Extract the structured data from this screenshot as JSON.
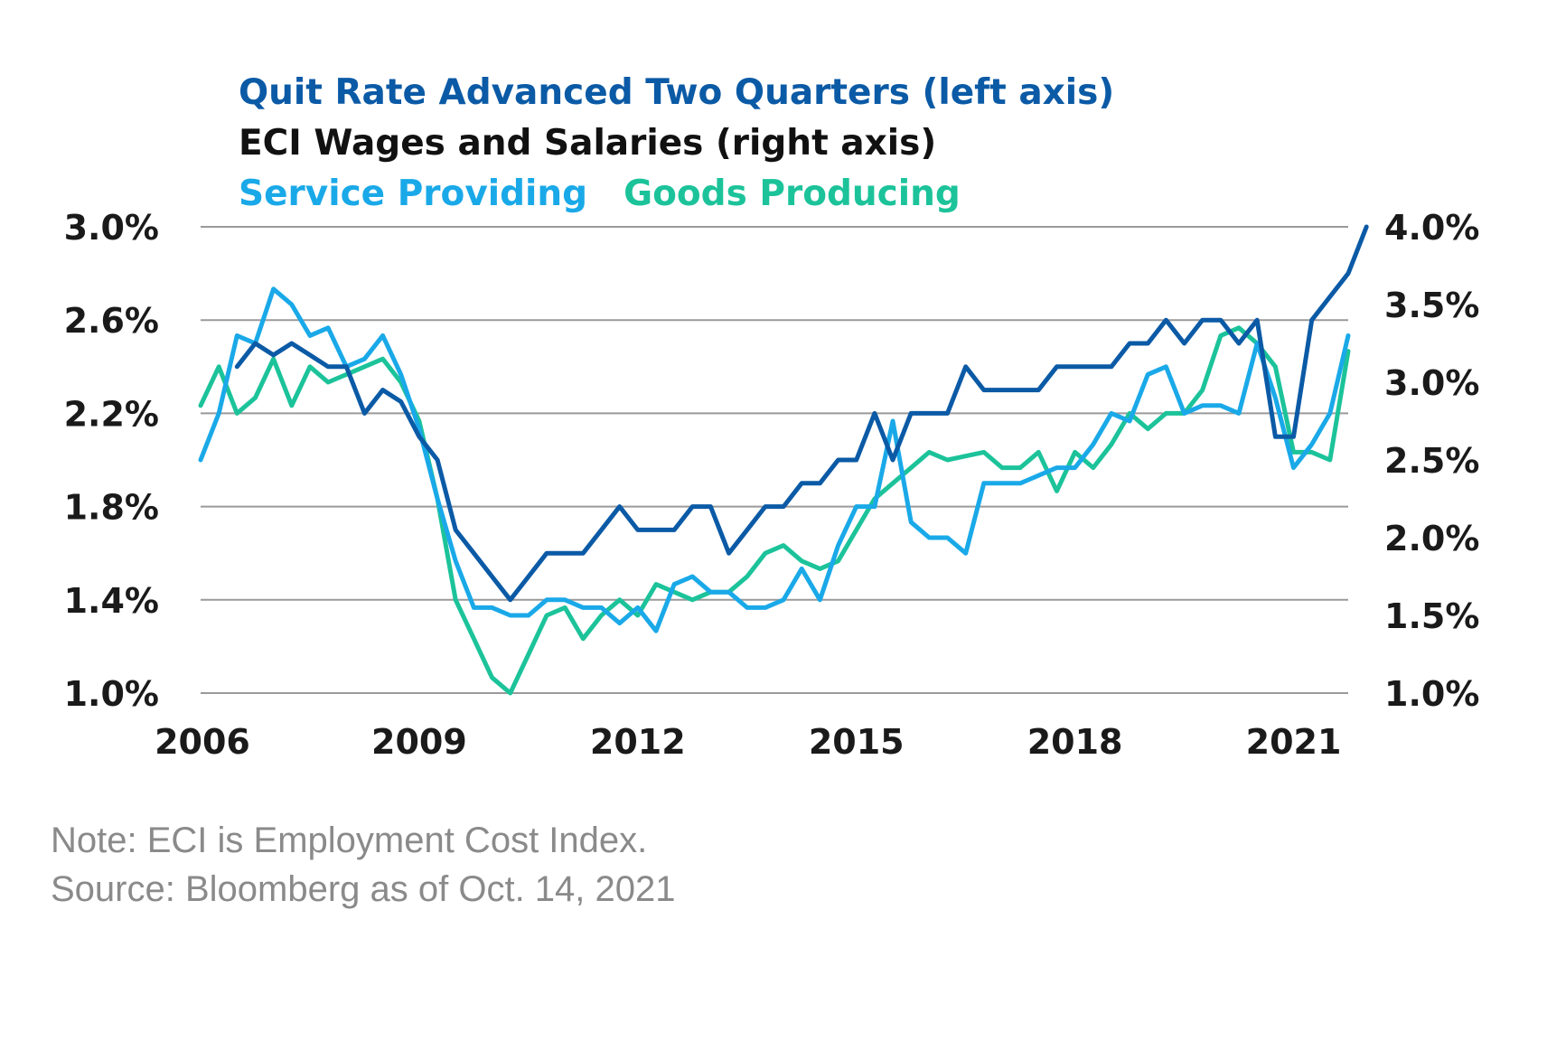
{
  "legend": {
    "quit_rate": "Quit Rate Advanced Two Quarters (left axis)",
    "eci": "ECI Wages and Salaries (right axis)",
    "service": "Service Providing",
    "goods": "Goods Producing"
  },
  "notes": {
    "note": "Note: ECI is Employment Cost Index.",
    "source": "Source: Bloomberg as of Oct. 14, 2021"
  },
  "colors": {
    "quit_rate": "#0b5aa6",
    "eci_title": "#111111",
    "service": "#1aa9e8",
    "goods": "#1cc39a",
    "grid": "#9a9a9a"
  },
  "chart_data": {
    "type": "line",
    "x_ticks": [
      "2006",
      "2009",
      "2012",
      "2015",
      "2018",
      "2021"
    ],
    "x_tick_values": [
      2006,
      2009,
      2012,
      2015,
      2018,
      2021
    ],
    "xlim": [
      2006,
      2021.75
    ],
    "left_axis": {
      "ticks": [
        "3.0%",
        "2.6%",
        "2.2%",
        "1.8%",
        "1.4%",
        "1.0%"
      ],
      "values": [
        3.0,
        2.6,
        2.2,
        1.8,
        1.4,
        1.0
      ],
      "ylim": [
        1.0,
        3.0
      ]
    },
    "right_axis": {
      "ticks": [
        "4.0%",
        "3.5%",
        "3.0%",
        "2.5%",
        "2.0%",
        "1.5%",
        "1.0%"
      ],
      "values": [
        4.0,
        3.5,
        3.0,
        2.5,
        2.0,
        1.5,
        1.0
      ],
      "ylim": [
        1.0,
        4.0
      ]
    },
    "grid": true,
    "series": [
      {
        "name": "Quit Rate Advanced Two Quarters (left axis)",
        "axis": "left",
        "color": "#0b5aa6",
        "points": [
          [
            2006.5,
            2.4
          ],
          [
            2006.75,
            2.5
          ],
          [
            2007.0,
            2.45
          ],
          [
            2007.25,
            2.5
          ],
          [
            2007.5,
            2.45
          ],
          [
            2007.75,
            2.4
          ],
          [
            2008.0,
            2.4
          ],
          [
            2008.25,
            2.2
          ],
          [
            2008.5,
            2.3
          ],
          [
            2008.75,
            2.25
          ],
          [
            2009.0,
            2.1
          ],
          [
            2009.25,
            2.0
          ],
          [
            2009.5,
            1.7
          ],
          [
            2009.75,
            1.6
          ],
          [
            2010.0,
            1.5
          ],
          [
            2010.25,
            1.4
          ],
          [
            2010.5,
            1.5
          ],
          [
            2010.75,
            1.6
          ],
          [
            2011.0,
            1.6
          ],
          [
            2011.25,
            1.6
          ],
          [
            2011.5,
            1.7
          ],
          [
            2011.75,
            1.8
          ],
          [
            2012.0,
            1.7
          ],
          [
            2012.25,
            1.7
          ],
          [
            2012.5,
            1.7
          ],
          [
            2012.75,
            1.8
          ],
          [
            2013.0,
            1.8
          ],
          [
            2013.25,
            1.6
          ],
          [
            2013.5,
            1.7
          ],
          [
            2013.75,
            1.8
          ],
          [
            2014.0,
            1.8
          ],
          [
            2014.25,
            1.9
          ],
          [
            2014.5,
            1.9
          ],
          [
            2014.75,
            2.0
          ],
          [
            2015.0,
            2.0
          ],
          [
            2015.25,
            2.2
          ],
          [
            2015.5,
            2.0
          ],
          [
            2015.75,
            2.2
          ],
          [
            2016.0,
            2.2
          ],
          [
            2016.25,
            2.2
          ],
          [
            2016.5,
            2.4
          ],
          [
            2016.75,
            2.3
          ],
          [
            2017.0,
            2.3
          ],
          [
            2017.25,
            2.3
          ],
          [
            2017.5,
            2.3
          ],
          [
            2017.75,
            2.4
          ],
          [
            2018.0,
            2.4
          ],
          [
            2018.25,
            2.4
          ],
          [
            2018.5,
            2.4
          ],
          [
            2018.75,
            2.5
          ],
          [
            2019.0,
            2.5
          ],
          [
            2019.25,
            2.6
          ],
          [
            2019.5,
            2.5
          ],
          [
            2019.75,
            2.6
          ],
          [
            2020.0,
            2.6
          ],
          [
            2020.25,
            2.5
          ],
          [
            2020.5,
            2.6
          ],
          [
            2020.75,
            2.1
          ],
          [
            2021.0,
            2.1
          ],
          [
            2021.25,
            2.6
          ],
          [
            2021.5,
            2.7
          ],
          [
            2021.75,
            2.8
          ],
          [
            2022.0,
            3.0
          ]
        ]
      },
      {
        "name": "Service Providing",
        "axis": "right",
        "color": "#1aa9e8",
        "points": [
          [
            2006.0,
            2.5
          ],
          [
            2006.25,
            2.8
          ],
          [
            2006.5,
            3.3
          ],
          [
            2006.75,
            3.25
          ],
          [
            2007.0,
            3.6
          ],
          [
            2007.25,
            3.5
          ],
          [
            2007.5,
            3.3
          ],
          [
            2007.75,
            3.35
          ],
          [
            2008.0,
            3.1
          ],
          [
            2008.25,
            3.15
          ],
          [
            2008.5,
            3.3
          ],
          [
            2008.75,
            3.05
          ],
          [
            2009.0,
            2.7
          ],
          [
            2009.25,
            2.25
          ],
          [
            2009.5,
            1.85
          ],
          [
            2009.75,
            1.55
          ],
          [
            2010.0,
            1.55
          ],
          [
            2010.25,
            1.5
          ],
          [
            2010.5,
            1.5
          ],
          [
            2010.75,
            1.6
          ],
          [
            2011.0,
            1.6
          ],
          [
            2011.25,
            1.55
          ],
          [
            2011.5,
            1.55
          ],
          [
            2011.75,
            1.45
          ],
          [
            2012.0,
            1.55
          ],
          [
            2012.25,
            1.4
          ],
          [
            2012.5,
            1.7
          ],
          [
            2012.75,
            1.75
          ],
          [
            2013.0,
            1.65
          ],
          [
            2013.25,
            1.65
          ],
          [
            2013.5,
            1.55
          ],
          [
            2013.75,
            1.55
          ],
          [
            2014.0,
            1.6
          ],
          [
            2014.25,
            1.8
          ],
          [
            2014.5,
            1.6
          ],
          [
            2014.75,
            1.95
          ],
          [
            2015.0,
            2.2
          ],
          [
            2015.25,
            2.2
          ],
          [
            2015.5,
            2.75
          ],
          [
            2015.75,
            2.1
          ],
          [
            2016.0,
            2.0
          ],
          [
            2016.25,
            2.0
          ],
          [
            2016.5,
            1.9
          ],
          [
            2016.75,
            2.35
          ],
          [
            2017.0,
            2.35
          ],
          [
            2017.25,
            2.35
          ],
          [
            2017.5,
            2.4
          ],
          [
            2017.75,
            2.45
          ],
          [
            2018.0,
            2.45
          ],
          [
            2018.25,
            2.6
          ],
          [
            2018.5,
            2.8
          ],
          [
            2018.75,
            2.75
          ],
          [
            2019.0,
            3.05
          ],
          [
            2019.25,
            3.1
          ],
          [
            2019.5,
            2.8
          ],
          [
            2019.75,
            2.85
          ],
          [
            2020.0,
            2.85
          ],
          [
            2020.25,
            2.8
          ],
          [
            2020.5,
            3.25
          ],
          [
            2020.75,
            2.9
          ],
          [
            2021.0,
            2.45
          ],
          [
            2021.25,
            2.6
          ],
          [
            2021.5,
            2.8
          ],
          [
            2021.75,
            3.3
          ]
        ]
      },
      {
        "name": "Goods Producing",
        "axis": "right",
        "color": "#1cc39a",
        "points": [
          [
            2006.0,
            2.85
          ],
          [
            2006.25,
            3.1
          ],
          [
            2006.5,
            2.8
          ],
          [
            2006.75,
            2.9
          ],
          [
            2007.0,
            3.15
          ],
          [
            2007.25,
            2.85
          ],
          [
            2007.5,
            3.1
          ],
          [
            2007.75,
            3.0
          ],
          [
            2008.0,
            3.05
          ],
          [
            2008.25,
            3.1
          ],
          [
            2008.5,
            3.15
          ],
          [
            2008.75,
            3.0
          ],
          [
            2009.0,
            2.75
          ],
          [
            2009.25,
            2.25
          ],
          [
            2009.5,
            1.6
          ],
          [
            2009.75,
            1.35
          ],
          [
            2010.0,
            1.1
          ],
          [
            2010.25,
            1.0
          ],
          [
            2010.5,
            1.25
          ],
          [
            2010.75,
            1.5
          ],
          [
            2011.0,
            1.55
          ],
          [
            2011.25,
            1.35
          ],
          [
            2011.5,
            1.5
          ],
          [
            2011.75,
            1.6
          ],
          [
            2012.0,
            1.5
          ],
          [
            2012.25,
            1.7
          ],
          [
            2012.5,
            1.65
          ],
          [
            2012.75,
            1.6
          ],
          [
            2013.0,
            1.65
          ],
          [
            2013.25,
            1.65
          ],
          [
            2013.5,
            1.75
          ],
          [
            2013.75,
            1.9
          ],
          [
            2014.0,
            1.95
          ],
          [
            2014.25,
            1.85
          ],
          [
            2014.5,
            1.8
          ],
          [
            2014.75,
            1.85
          ],
          [
            2015.0,
            2.05
          ],
          [
            2015.25,
            2.25
          ],
          [
            2015.5,
            2.35
          ],
          [
            2015.75,
            2.45
          ],
          [
            2016.0,
            2.55
          ],
          [
            2016.25,
            2.5
          ],
          [
            2016.75,
            2.55
          ],
          [
            2017.0,
            2.45
          ],
          [
            2017.25,
            2.45
          ],
          [
            2017.5,
            2.55
          ],
          [
            2017.75,
            2.3
          ],
          [
            2018.0,
            2.55
          ],
          [
            2018.25,
            2.45
          ],
          [
            2018.5,
            2.6
          ],
          [
            2018.75,
            2.8
          ],
          [
            2019.0,
            2.7
          ],
          [
            2019.25,
            2.8
          ],
          [
            2019.5,
            2.8
          ],
          [
            2019.75,
            2.95
          ],
          [
            2020.0,
            3.3
          ],
          [
            2020.25,
            3.35
          ],
          [
            2020.5,
            3.25
          ],
          [
            2020.75,
            3.1
          ],
          [
            2021.0,
            2.55
          ],
          [
            2021.25,
            2.55
          ],
          [
            2021.5,
            2.5
          ],
          [
            2021.75,
            3.2
          ]
        ]
      }
    ]
  }
}
